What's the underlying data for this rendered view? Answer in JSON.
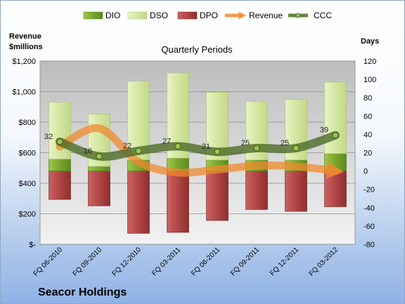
{
  "chart_data": {
    "type": "bar",
    "title": "Quarterly Periods",
    "company": "Seacor Holdings",
    "left_axis_label_line1": "Revenue",
    "left_axis_label_line2": "$millions",
    "right_axis_label": "Days",
    "categories": [
      "FQ 06-2010",
      "FQ 09-2010",
      "FQ 12-2010",
      "FQ 03-2011",
      "FQ 06-2011",
      "FQ 09-2011",
      "FQ 12-2011",
      "FQ 03-2012"
    ],
    "left_axis": {
      "min": 0,
      "max": 1200,
      "step": 200,
      "tick_labels": [
        "$-",
        "$200",
        "$400",
        "$600",
        "$800",
        "$1,000",
        "$1,200"
      ]
    },
    "right_axis": {
      "min": -80,
      "max": 120,
      "step": 20,
      "tick_labels": [
        "-80",
        "-60",
        "-40",
        "-20",
        "0",
        "20",
        "40",
        "60",
        "80",
        "100",
        "120"
      ]
    },
    "series": [
      {
        "name": "DIO",
        "type": "stacked-bar",
        "values": [
          13,
          5,
          12,
          14,
          12,
          12,
          12,
          19
        ]
      },
      {
        "name": "DSO",
        "type": "stacked-bar",
        "values": [
          62,
          57,
          86,
          93,
          74,
          64,
          66,
          78
        ]
      },
      {
        "name": "DPO",
        "type": "negative-bar",
        "values": [
          -31,
          -38,
          -68,
          -67,
          -54,
          -42,
          -44,
          -39
        ]
      },
      {
        "name": "Revenue",
        "type": "line",
        "values": [
          640,
          760,
          540,
          470,
          490,
          515,
          510,
          480
        ]
      },
      {
        "name": "CCC",
        "type": "line",
        "values": [
          32,
          16,
          22,
          27,
          21,
          25,
          25,
          39
        ],
        "data_labels": [
          "32",
          "16",
          "22",
          "27",
          "21",
          "25",
          "25",
          "39"
        ]
      }
    ],
    "colors": {
      "DIO": "#8db53c",
      "DSO": "#d8e8a9",
      "DPO": "#b84a4a",
      "Revenue": "#f08a2e",
      "CCC": "#4f6b28"
    },
    "legend_position": "top",
    "grid": true
  }
}
